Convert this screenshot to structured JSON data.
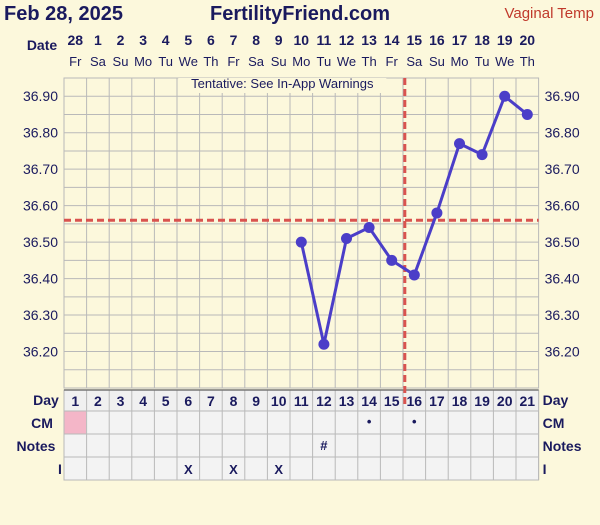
{
  "header": {
    "date": "Feb 28, 2025",
    "site": "FertilityFriend.com",
    "temp_type": "Vaginal Temp"
  },
  "labels": {
    "date": "Date",
    "day": "Day",
    "cm": "CM",
    "notes": "Notes",
    "i": "I",
    "tentative": "Tentative: See In-App Warnings"
  },
  "dates": [
    "28",
    "1",
    "2",
    "3",
    "4",
    "5",
    "6",
    "7",
    "8",
    "9",
    "10",
    "11",
    "12",
    "13",
    "14",
    "15",
    "16",
    "17",
    "18",
    "19",
    "20"
  ],
  "weekdays": [
    "Fr",
    "Sa",
    "Su",
    "Mo",
    "Tu",
    "We",
    "Th",
    "Fr",
    "Sa",
    "Su",
    "Mo",
    "Tu",
    "We",
    "Th",
    "Fr",
    "Sa",
    "Su",
    "Mo",
    "Tu",
    "We",
    "Th"
  ],
  "days": [
    "1",
    "2",
    "3",
    "4",
    "5",
    "6",
    "7",
    "8",
    "9",
    "10",
    "11",
    "12",
    "13",
    "14",
    "15",
    "16",
    "17",
    "18",
    "19",
    "20",
    "21"
  ],
  "cm_marks": [
    "",
    "",
    "",
    "",
    "",
    "",
    "",
    "",
    "",
    "",
    "",
    "",
    "",
    "•",
    "",
    "•",
    "",
    "",
    "",
    "",
    ""
  ],
  "notes_marks": [
    "",
    "",
    "",
    "",
    "",
    "",
    "",
    "",
    "",
    "",
    "",
    "#",
    "",
    "",
    "",
    "",
    "",
    "",
    "",
    "",
    ""
  ],
  "i_marks": [
    "",
    "",
    "",
    "",
    "",
    "X",
    "",
    "X",
    "",
    "X",
    "",
    "",
    "",
    "",
    "",
    "",
    "",
    "",
    "",
    "",
    ""
  ],
  "colors": {
    "background": "#fcf8dc",
    "grid": "#b9b9b9",
    "line": "#4b3ec8",
    "coverline": "#d9534f",
    "text": "#1a1a5e",
    "period": "#f4b6c8",
    "temp_type": "#c0392b"
  },
  "chart_data": {
    "type": "line",
    "y_ticks": [
      "36.90",
      "36.80",
      "36.70",
      "36.60",
      "36.50",
      "36.40",
      "36.30",
      "36.20"
    ],
    "ylim": [
      36.1,
      37.0
    ],
    "coverline": 36.56,
    "ovulation_day": 16,
    "series": [
      {
        "days": [
          11,
          12,
          13,
          14,
          15,
          16,
          17,
          18,
          19,
          20,
          21
        ],
        "values": [
          36.5,
          36.22,
          36.51,
          36.54,
          36.45,
          36.41,
          36.58,
          36.77,
          36.74,
          36.9,
          36.85
        ]
      }
    ]
  }
}
